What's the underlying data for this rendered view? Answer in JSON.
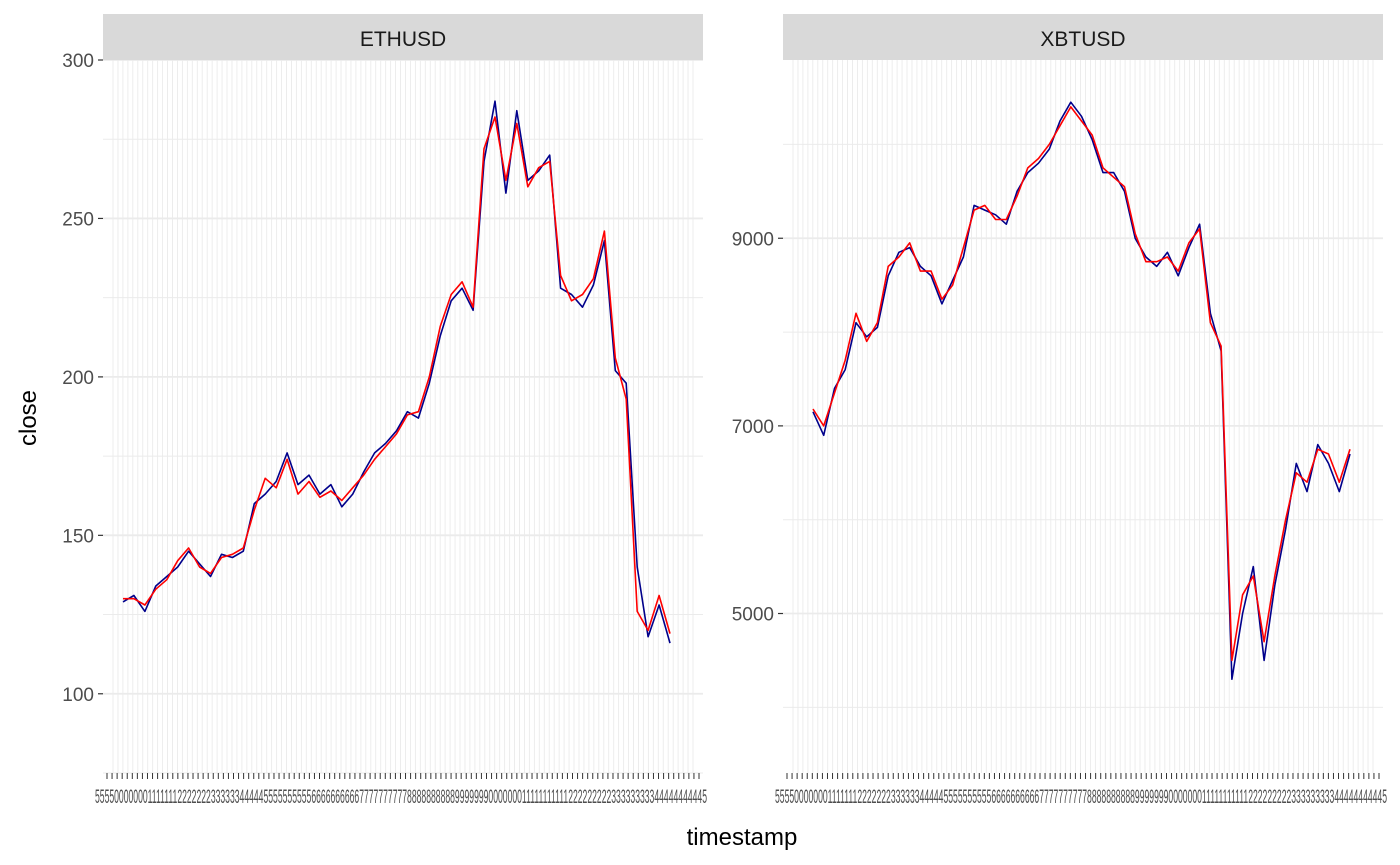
{
  "chart_data": {
    "type": "line",
    "xlabel": "timestamp",
    "ylabel": "close",
    "grid": true,
    "x_tick_label_text": "5555000000011111112222222333333444445555555555666666666677777777778888888888999999900000001111111111122222222233333333344444444445",
    "colors": {
      "series_a": "#00008b",
      "series_b": "#ff0000",
      "strip_bg": "#d9d9d9",
      "grid": "#ebebeb"
    },
    "panels": [
      {
        "title": "ETHUSD",
        "ylim": [
          75,
          300
        ],
        "y_ticks": [
          100,
          150,
          200,
          250,
          300
        ],
        "x": [
          0,
          2,
          4,
          6,
          8,
          10,
          12,
          14,
          16,
          18,
          20,
          22,
          24,
          26,
          28,
          30,
          32,
          34,
          36,
          38,
          40,
          42,
          44,
          46,
          48,
          50,
          52,
          54,
          56,
          58,
          60,
          62,
          64,
          66,
          68,
          70,
          72,
          74,
          76,
          78,
          80,
          82,
          84,
          86,
          88,
          90,
          92,
          94,
          96,
          98,
          100
        ],
        "series": [
          {
            "values": [
              129,
              131,
              126,
              134,
              137,
              140,
              145,
              141,
              137,
              144,
              143,
              145,
              160,
              163,
              167,
              176,
              166,
              169,
              163,
              166,
              159,
              163,
              170,
              176,
              179,
              183,
              189,
              187,
              198,
              213,
              224,
              228,
              221,
              268,
              287,
              258,
              284,
              262,
              265,
              270,
              228,
              226,
              222,
              229,
              243,
              202,
              198,
              140,
              118,
              128,
              116
            ]
          },
          {
            "values": [
              130,
              130,
              128,
              133,
              136,
              142,
              146,
              140,
              138,
              143,
              144,
              146,
              158,
              168,
              165,
              174,
              163,
              167,
              162,
              164,
              161,
              165,
              169,
              174,
              178,
              182,
              188,
              189,
              200,
              216,
              226,
              230,
              222,
              272,
              282,
              262,
              280,
              260,
              266,
              268,
              232,
              224,
              226,
              231,
              246,
              206,
              193,
              126,
              120,
              131,
              119
            ]
          }
        ]
      },
      {
        "title": "XBTUSD",
        "ylim": [
          3300,
          10900
        ],
        "y_ticks": [
          5000,
          7000,
          9000
        ],
        "x": [
          0,
          2,
          4,
          6,
          8,
          10,
          12,
          14,
          16,
          18,
          20,
          22,
          24,
          26,
          28,
          30,
          32,
          34,
          36,
          38,
          40,
          42,
          44,
          46,
          48,
          50,
          52,
          54,
          56,
          58,
          60,
          62,
          64,
          66,
          68,
          70,
          72,
          74,
          76,
          78,
          80,
          82,
          84,
          86,
          88,
          90,
          92,
          94,
          96,
          98,
          100
        ],
        "series": [
          {
            "values": [
              7150,
              6900,
              7400,
              7600,
              8100,
              7950,
              8050,
              8600,
              8850,
              8900,
              8700,
              8600,
              8300,
              8550,
              8800,
              9350,
              9300,
              9250,
              9150,
              9500,
              9700,
              9800,
              9950,
              10250,
              10450,
              10300,
              10050,
              9700,
              9700,
              9500,
              9000,
              8800,
              8700,
              8850,
              8600,
              8900,
              9150,
              8200,
              7800,
              4300,
              5000,
              5500,
              4500,
              5300,
              5900,
              6600,
              6300,
              6800,
              6600,
              6300,
              6700
            ]
          },
          {
            "values": [
              7180,
              7000,
              7350,
              7700,
              8200,
              7900,
              8100,
              8700,
              8800,
              8950,
              8650,
              8650,
              8350,
              8500,
              8900,
              9300,
              9350,
              9200,
              9200,
              9450,
              9750,
              9850,
              10000,
              10200,
              10400,
              10250,
              10100,
              9750,
              9650,
              9550,
              9050,
              8750,
              8750,
              8800,
              8650,
              8950,
              9100,
              8100,
              7850,
              4500,
              5200,
              5400,
              4700,
              5400,
              6000,
              6500,
              6400,
              6750,
              6700,
              6400,
              6750
            ]
          }
        ]
      }
    ]
  }
}
